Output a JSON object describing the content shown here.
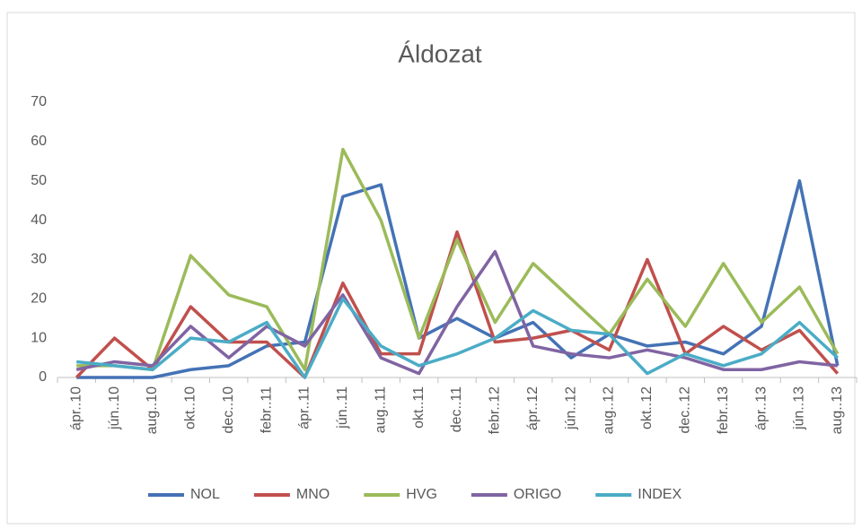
{
  "chart_data": {
    "type": "line",
    "title": "Áldozat",
    "categories": [
      "ápr..10",
      "jún..10",
      "aug..10",
      "okt..10",
      "dec..10",
      "febr..11",
      "ápr..11",
      "jún..11",
      "aug..11",
      "okt..11",
      "dec..11",
      "febr..12",
      "ápr..12",
      "jún..12",
      "aug..12",
      "okt..12",
      "dec..12",
      "febr..13",
      "ápr..13",
      "jún..13",
      "aug..13"
    ],
    "series": [
      {
        "name": "NOL",
        "color": "#4472b5",
        "values": [
          0,
          0,
          0,
          2,
          3,
          8,
          9,
          46,
          49,
          10,
          15,
          10,
          14,
          5,
          11,
          8,
          9,
          6,
          13,
          50,
          3
        ]
      },
      {
        "name": "MNO",
        "color": "#c0504d",
        "values": [
          0,
          10,
          2,
          18,
          9,
          9,
          0,
          24,
          6,
          6,
          37,
          9,
          10,
          12,
          7,
          30,
          6,
          13,
          7,
          12,
          1
        ]
      },
      {
        "name": "HVG",
        "color": "#9bbb59",
        "values": [
          3,
          3,
          2,
          31,
          21,
          18,
          2,
          58,
          40,
          10,
          35,
          14,
          29,
          20,
          11,
          25,
          13,
          29,
          14,
          23,
          6
        ]
      },
      {
        "name": "ORIGO",
        "color": "#8064a2",
        "values": [
          2,
          4,
          3,
          13,
          5,
          13,
          8,
          21,
          5,
          1,
          18,
          32,
          8,
          6,
          5,
          7,
          5,
          2,
          2,
          4,
          3
        ]
      },
      {
        "name": "INDEX",
        "color": "#4bacc6",
        "values": [
          4,
          3,
          2,
          10,
          9,
          14,
          0,
          20,
          8,
          3,
          6,
          10,
          17,
          12,
          11,
          1,
          6,
          3,
          6,
          14,
          5
        ]
      }
    ],
    "ylim": [
      0,
      70
    ],
    "yticks": [
      0,
      10,
      20,
      30,
      40,
      50,
      60,
      70
    ],
    "grid": false,
    "legend": "bottom"
  }
}
